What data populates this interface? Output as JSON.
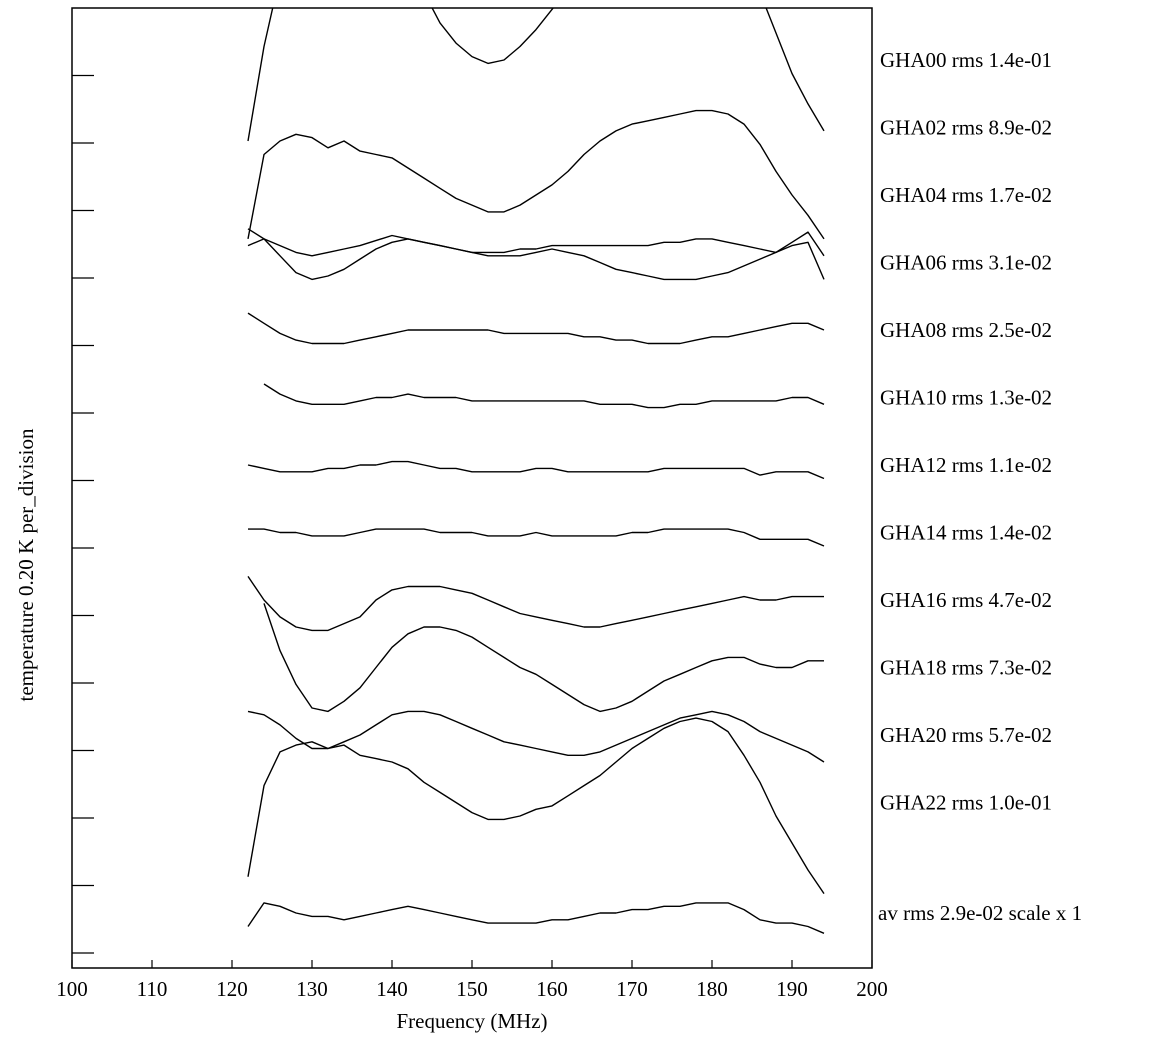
{
  "chart_data": {
    "type": "line",
    "xlabel": "Frequency (MHz)",
    "ylabel": "temperature   0.20 K  per_division",
    "xlim": [
      100,
      200
    ],
    "xticks": [
      100,
      110,
      120,
      130,
      140,
      150,
      160,
      170,
      180,
      190,
      200
    ],
    "x_tick_labels": [
      "100",
      "110",
      "120",
      "130",
      "140",
      "150",
      "160",
      "170",
      "180",
      "190",
      "200"
    ],
    "y_unit_per_division": 0.2,
    "y_divisions": 14,
    "grid": false,
    "series": [
      {
        "name": "GHA00 rms 1.4e-01",
        "x": [
          122,
          124,
          126,
          128,
          130,
          132,
          134,
          136,
          138,
          140,
          142,
          144,
          146,
          148,
          150,
          152,
          154,
          156,
          158,
          160,
          162,
          164,
          166,
          168,
          170,
          172,
          174,
          176,
          178,
          180,
          182,
          184,
          186,
          188,
          190,
          192,
          194
        ],
        "y": [
          -0.24,
          0.04,
          0.25,
          0.4,
          0.42,
          0.41,
          0.4,
          0.43,
          0.38,
          0.35,
          0.28,
          0.2,
          0.11,
          0.05,
          0.01,
          -0.01,
          0.0,
          0.04,
          0.09,
          0.15,
          0.21,
          0.29,
          0.36,
          0.41,
          0.44,
          0.45,
          0.45,
          0.45,
          0.45,
          0.42,
          0.38,
          0.3,
          0.2,
          0.08,
          -0.04,
          -0.13,
          -0.21
        ]
      },
      {
        "name": "GHA02 rms 8.9e-02",
        "x": [
          122,
          124,
          126,
          128,
          130,
          132,
          134,
          136,
          138,
          140,
          142,
          144,
          146,
          148,
          150,
          152,
          154,
          156,
          158,
          160,
          162,
          164,
          166,
          168,
          170,
          172,
          174,
          176,
          178,
          180,
          182,
          184,
          186,
          188,
          190,
          192,
          194
        ],
        "y": [
          -0.33,
          -0.08,
          -0.04,
          -0.02,
          -0.03,
          -0.06,
          -0.04,
          -0.07,
          -0.08,
          -0.09,
          -0.12,
          -0.15,
          -0.18,
          -0.21,
          -0.23,
          -0.25,
          -0.25,
          -0.23,
          -0.2,
          -0.17,
          -0.13,
          -0.08,
          -0.04,
          -0.01,
          0.01,
          0.02,
          0.03,
          0.04,
          0.05,
          0.05,
          0.04,
          0.01,
          -0.05,
          -0.13,
          -0.2,
          -0.26,
          -0.33
        ]
      },
      {
        "name": "GHA04 rms 1.7e-02",
        "x": [
          122,
          124,
          126,
          128,
          130,
          132,
          134,
          136,
          140,
          142,
          144,
          146,
          148,
          150,
          152,
          154,
          156,
          158,
          160,
          162,
          164,
          166,
          168,
          170,
          172,
          174,
          176,
          178,
          180,
          182,
          184,
          186,
          188,
          190,
          192,
          194
        ],
        "y": [
          -0.15,
          -0.13,
          -0.15,
          -0.17,
          -0.18,
          -0.17,
          -0.16,
          -0.15,
          -0.12,
          -0.13,
          -0.14,
          -0.15,
          -0.16,
          -0.17,
          -0.17,
          -0.17,
          -0.16,
          -0.16,
          -0.15,
          -0.15,
          -0.15,
          -0.15,
          -0.15,
          -0.15,
          -0.15,
          -0.14,
          -0.14,
          -0.13,
          -0.13,
          -0.14,
          -0.15,
          -0.16,
          -0.17,
          -0.15,
          -0.14,
          -0.25
        ]
      },
      {
        "name": "GHA06 rms 3.1e-02",
        "x": [
          122,
          124,
          126,
          128,
          130,
          132,
          134,
          136,
          138,
          140,
          142,
          144,
          146,
          148,
          150,
          152,
          154,
          156,
          158,
          160,
          162,
          164,
          166,
          168,
          170,
          172,
          174,
          176,
          178,
          180,
          182,
          184,
          186,
          188,
          190,
          192,
          194
        ],
        "y": [
          0.1,
          0.07,
          0.02,
          -0.03,
          -0.05,
          -0.04,
          -0.02,
          0.01,
          0.04,
          0.06,
          0.07,
          0.06,
          0.05,
          0.04,
          0.03,
          0.02,
          0.02,
          0.02,
          0.03,
          0.04,
          0.03,
          0.02,
          0.0,
          -0.02,
          -0.03,
          -0.04,
          -0.05,
          -0.05,
          -0.05,
          -0.04,
          -0.03,
          -0.01,
          0.01,
          0.03,
          0.06,
          0.09,
          0.02
        ]
      },
      {
        "name": "GHA08 rms 2.5e-02",
        "x": [
          122,
          124,
          126,
          128,
          130,
          132,
          134,
          136,
          138,
          140,
          142,
          144,
          146,
          148,
          150,
          152,
          154,
          156,
          158,
          160,
          162,
          164,
          166,
          168,
          170,
          172,
          174,
          176,
          178,
          180,
          182,
          184,
          186,
          188,
          190,
          192,
          194
        ],
        "y": [
          0.05,
          0.02,
          -0.01,
          -0.03,
          -0.04,
          -0.04,
          -0.04,
          -0.03,
          -0.02,
          -0.01,
          0.0,
          0.0,
          0.0,
          0.0,
          0.0,
          0.0,
          -0.01,
          -0.01,
          -0.01,
          -0.01,
          -0.01,
          -0.02,
          -0.02,
          -0.03,
          -0.03,
          -0.04,
          -0.04,
          -0.04,
          -0.03,
          -0.02,
          -0.02,
          -0.01,
          0.0,
          0.01,
          0.02,
          0.02,
          0.0
        ]
      },
      {
        "name": "GHA10 rms 1.3e-02",
        "x": [
          124,
          126,
          128,
          130,
          132,
          134,
          136,
          138,
          140,
          142,
          144,
          146,
          148,
          150,
          152,
          154,
          156,
          158,
          160,
          162,
          164,
          166,
          168,
          170,
          172,
          174,
          176,
          178,
          180,
          182,
          184,
          186,
          188,
          190,
          192,
          194
        ],
        "y": [
          0.04,
          0.01,
          -0.01,
          -0.02,
          -0.02,
          -0.02,
          -0.01,
          0.0,
          0.0,
          0.01,
          0.0,
          0.0,
          0.0,
          -0.01,
          -0.01,
          -0.01,
          -0.01,
          -0.01,
          -0.01,
          -0.01,
          -0.01,
          -0.02,
          -0.02,
          -0.02,
          -0.03,
          -0.03,
          -0.02,
          -0.02,
          -0.01,
          -0.01,
          -0.01,
          -0.01,
          -0.01,
          0.0,
          0.0,
          -0.02
        ]
      },
      {
        "name": "GHA12 rms 1.1e-02",
        "x": [
          122,
          124,
          126,
          128,
          130,
          132,
          134,
          136,
          138,
          140,
          142,
          144,
          146,
          148,
          150,
          152,
          154,
          156,
          158,
          160,
          162,
          164,
          166,
          168,
          170,
          172,
          174,
          176,
          178,
          180,
          182,
          184,
          186,
          188,
          190,
          192,
          194
        ],
        "y": [
          0.0,
          -0.01,
          -0.02,
          -0.02,
          -0.02,
          -0.01,
          -0.01,
          0.0,
          0.0,
          0.01,
          0.01,
          0.0,
          -0.01,
          -0.01,
          -0.02,
          -0.02,
          -0.02,
          -0.02,
          -0.01,
          -0.01,
          -0.02,
          -0.02,
          -0.02,
          -0.02,
          -0.02,
          -0.02,
          -0.01,
          -0.01,
          -0.01,
          -0.01,
          -0.01,
          -0.01,
          -0.03,
          -0.02,
          -0.02,
          -0.02,
          -0.04
        ]
      },
      {
        "name": "GHA14 rms 1.4e-02",
        "x": [
          122,
          124,
          126,
          128,
          130,
          132,
          134,
          136,
          138,
          140,
          142,
          144,
          146,
          148,
          150,
          152,
          154,
          156,
          158,
          160,
          162,
          164,
          166,
          168,
          170,
          172,
          174,
          176,
          178,
          180,
          182,
          184,
          186,
          188,
          190,
          192,
          194
        ],
        "y": [
          0.01,
          0.01,
          0.0,
          0.0,
          -0.01,
          -0.01,
          -0.01,
          0.0,
          0.01,
          0.01,
          0.01,
          0.01,
          0.0,
          0.0,
          0.0,
          -0.01,
          -0.01,
          -0.01,
          0.0,
          -0.01,
          -0.01,
          -0.01,
          -0.01,
          -0.01,
          0.0,
          0.0,
          0.01,
          0.01,
          0.01,
          0.01,
          0.01,
          0.0,
          -0.02,
          -0.02,
          -0.02,
          -0.02,
          -0.04
        ]
      },
      {
        "name": "GHA16 rms 4.7e-02",
        "x": [
          122,
          124,
          126,
          128,
          130,
          132,
          134,
          136,
          138,
          140,
          142,
          144,
          146,
          148,
          150,
          152,
          154,
          156,
          158,
          160,
          162,
          164,
          166,
          168,
          170,
          172,
          174,
          176,
          178,
          180,
          182,
          184,
          186,
          188,
          190,
          192,
          194
        ],
        "y": [
          0.07,
          0.0,
          -0.05,
          -0.08,
          -0.09,
          -0.09,
          -0.07,
          -0.05,
          0.0,
          0.03,
          0.04,
          0.04,
          0.04,
          0.03,
          0.02,
          0.0,
          -0.02,
          -0.04,
          -0.05,
          -0.06,
          -0.07,
          -0.08,
          -0.08,
          -0.07,
          -0.06,
          -0.05,
          -0.04,
          -0.03,
          -0.02,
          -0.01,
          0.0,
          0.01,
          0.0,
          0.0,
          0.01,
          0.01,
          0.01
        ]
      },
      {
        "name": "GHA18 rms 7.3e-02",
        "x": [
          124,
          126,
          128,
          130,
          132,
          134,
          136,
          138,
          140,
          142,
          144,
          146,
          148,
          150,
          152,
          154,
          156,
          158,
          160,
          162,
          164,
          166,
          168,
          170,
          172,
          174,
          176,
          178,
          180,
          182,
          184,
          186,
          188,
          190,
          192,
          194
        ],
        "y": [
          0.19,
          0.05,
          -0.05,
          -0.12,
          -0.13,
          -0.1,
          -0.06,
          0.0,
          0.06,
          0.1,
          0.12,
          0.12,
          0.11,
          0.09,
          0.06,
          0.03,
          0.0,
          -0.02,
          -0.05,
          -0.08,
          -0.11,
          -0.13,
          -0.12,
          -0.1,
          -0.07,
          -0.04,
          -0.02,
          0.0,
          0.02,
          0.03,
          0.03,
          0.01,
          0.0,
          0.0,
          0.02,
          0.02
        ]
      },
      {
        "name": "GHA20 rms 5.7e-02",
        "x": [
          122,
          124,
          126,
          128,
          130,
          132,
          134,
          136,
          138,
          140,
          142,
          144,
          146,
          148,
          150,
          152,
          154,
          156,
          158,
          160,
          162,
          164,
          166,
          168,
          170,
          172,
          174,
          176,
          178,
          180,
          182,
          184,
          186,
          188,
          190,
          192,
          194
        ],
        "y": [
          0.07,
          0.06,
          0.03,
          -0.01,
          -0.04,
          -0.04,
          -0.02,
          0.0,
          0.03,
          0.06,
          0.07,
          0.07,
          0.06,
          0.04,
          0.02,
          0.0,
          -0.02,
          -0.03,
          -0.04,
          -0.05,
          -0.06,
          -0.06,
          -0.05,
          -0.03,
          -0.01,
          0.01,
          0.03,
          0.05,
          0.06,
          0.07,
          0.06,
          0.04,
          0.01,
          -0.01,
          -0.03,
          -0.05,
          -0.08
        ]
      },
      {
        "name": "GHA22 rms 1.0e-01",
        "x": [
          122,
          124,
          126,
          128,
          130,
          132,
          134,
          136,
          138,
          140,
          142,
          144,
          146,
          148,
          150,
          152,
          154,
          156,
          158,
          160,
          162,
          164,
          166,
          168,
          170,
          172,
          174,
          176,
          178,
          180,
          182,
          184,
          186,
          188,
          190,
          192,
          194
        ],
        "y": [
          -0.22,
          0.05,
          0.15,
          0.17,
          0.18,
          0.16,
          0.17,
          0.14,
          0.13,
          0.12,
          0.1,
          0.06,
          0.03,
          0.0,
          -0.03,
          -0.05,
          -0.05,
          -0.04,
          -0.02,
          -0.01,
          0.02,
          0.05,
          0.08,
          0.12,
          0.16,
          0.19,
          0.22,
          0.24,
          0.25,
          0.24,
          0.21,
          0.14,
          0.06,
          -0.04,
          -0.12,
          -0.2,
          -0.27
        ]
      },
      {
        "name": "av  rms 2.9e-02 scale x 1",
        "x": [
          122,
          124,
          126,
          128,
          130,
          132,
          134,
          136,
          138,
          140,
          142,
          144,
          146,
          148,
          150,
          152,
          154,
          156,
          158,
          160,
          162,
          164,
          166,
          168,
          170,
          172,
          174,
          176,
          178,
          180,
          182,
          184,
          186,
          188,
          190,
          192,
          194
        ],
        "y": [
          -0.04,
          0.03,
          0.02,
          0.0,
          -0.01,
          -0.01,
          -0.02,
          -0.01,
          0.0,
          0.01,
          0.02,
          0.01,
          0.0,
          -0.01,
          -0.02,
          -0.03,
          -0.03,
          -0.03,
          -0.03,
          -0.02,
          -0.02,
          -0.01,
          0.0,
          0.0,
          0.01,
          0.01,
          0.02,
          0.02,
          0.03,
          0.03,
          0.03,
          0.01,
          -0.02,
          -0.03,
          -0.03,
          -0.04,
          -0.06
        ]
      }
    ]
  }
}
